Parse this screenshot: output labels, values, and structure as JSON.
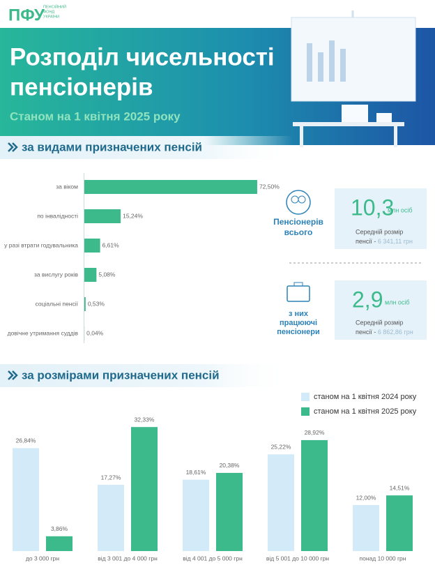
{
  "header": {
    "logo": "ПФУ",
    "logo_lines": [
      "ПЕНСІЙНИЙ",
      "ФОНД",
      "УКРАЇНИ"
    ],
    "title_lines": [
      "Розподіл чисельності",
      "пенсіонерів"
    ],
    "subtitle": "Станом на 1 квітня 2025 року"
  },
  "summary": [
    {
      "label_lines": [
        "Пенсіонерів",
        "всього"
      ],
      "value": "10,3",
      "unit": "млн осіб",
      "note": "Середній розмір",
      "note2": "пенсії -",
      "amount": "6 341,11 грн"
    },
    {
      "label_lines": [
        "з них",
        "працюючі",
        "пенсіонери"
      ],
      "value": "2,9",
      "unit": "млн осіб",
      "note": "Середній розмір",
      "note2": "пенсії -",
      "amount": "6 862,86 грн"
    }
  ],
  "chart_data": [
    {
      "type": "hbar",
      "title": "за видами призначених пенсій",
      "categories": [
        "за віком",
        "по інвалідності",
        "у разі втрати годувальника",
        "за вислугу років",
        "соціальні пенсії",
        "довічне утримання суддів"
      ],
      "values": [
        72.5,
        15.24,
        6.61,
        5.08,
        0.53,
        0.04
      ],
      "value_labels": [
        "72,50%",
        "15,24%",
        "6,61%",
        "5,08%",
        "0,53%",
        "0,04%"
      ],
      "color": "#3dba8b"
    },
    {
      "type": "bar",
      "title": "за розмірами призначених пенсій",
      "categories": [
        "до 3 000 грн",
        "від 3 001 до 4 000 грн",
        "від 4 001 до 5 000 грн",
        "від 5 001 до 10 000 грн",
        "понад 10 000 грн"
      ],
      "series": [
        {
          "name": "станом на 1 квітня 2024 року",
          "color": "#d3eaf8",
          "values": [
            26.84,
            17.27,
            18.61,
            25.22,
            12.0
          ],
          "value_labels": [
            "26,84%",
            "17,27%",
            "18,61%",
            "25,22%",
            "12,00%"
          ]
        },
        {
          "name": "станом на 1 квітня 2025 року",
          "color": "#3dba8b",
          "values": [
            3.86,
            32.33,
            20.38,
            28.92,
            14.51
          ],
          "value_labels": [
            "3,86%",
            "32,33%",
            "20,38%",
            "28,92%",
            "14,51%"
          ]
        }
      ]
    }
  ]
}
